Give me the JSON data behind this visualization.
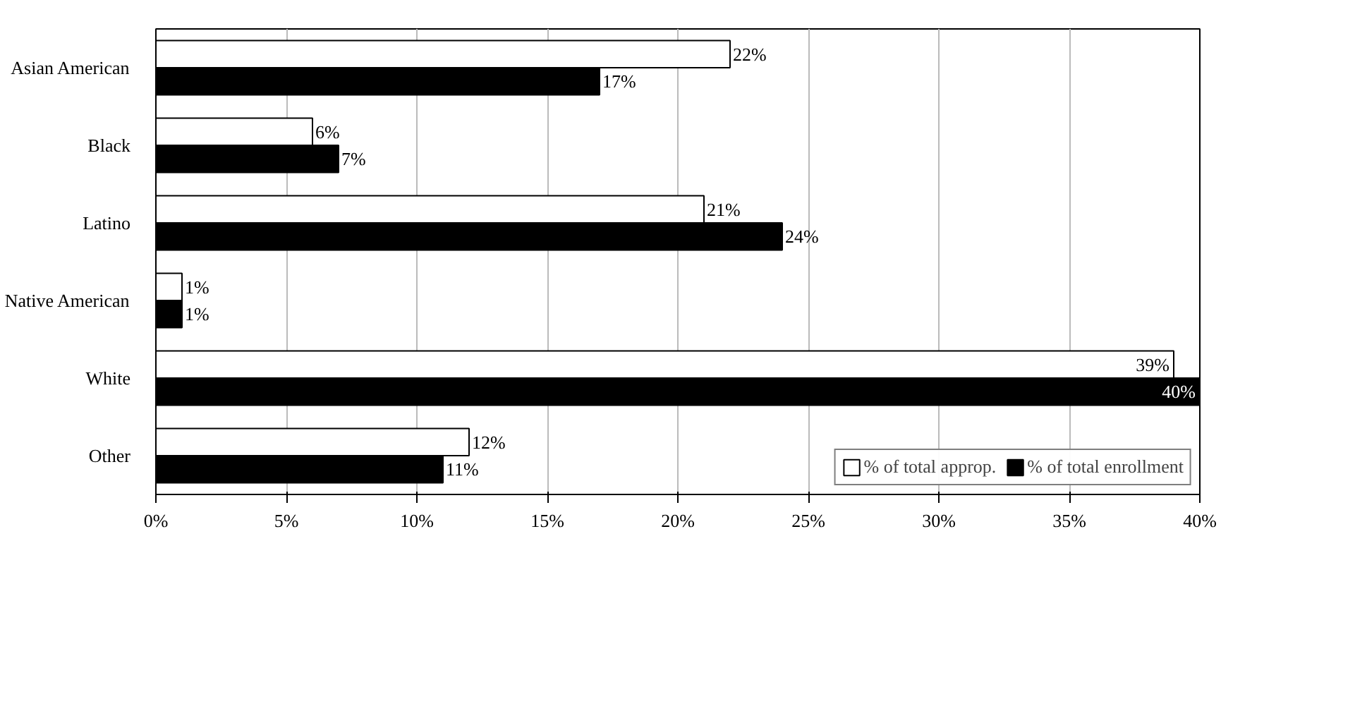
{
  "chart_data": {
    "type": "bar",
    "orientation": "horizontal",
    "categories": [
      "Asian American",
      "Black",
      "Latino",
      "Native American",
      "White",
      "Other"
    ],
    "series": [
      {
        "name": "% of total approp.",
        "color": "#ffffff",
        "values": [
          22,
          6,
          21,
          1,
          39,
          12
        ],
        "value_labels": [
          "22%",
          "6%",
          "21%",
          "1%",
          "39%",
          "12%"
        ]
      },
      {
        "name": "% of total enrollment",
        "color": "#000000",
        "values": [
          17,
          7,
          24,
          1,
          40,
          11
        ],
        "value_labels": [
          "17%",
          "7%",
          "24%",
          "1%",
          "40%",
          "11%"
        ]
      }
    ],
    "xlim": [
      0,
      40
    ],
    "xticks": [
      {
        "value": 0,
        "label": "0%"
      },
      {
        "value": 5,
        "label": "5%"
      },
      {
        "value": 10,
        "label": "10%"
      },
      {
        "value": 15,
        "label": "15%"
      },
      {
        "value": 20,
        "label": "20%"
      },
      {
        "value": 25,
        "label": "25%"
      },
      {
        "value": 30,
        "label": "30%"
      },
      {
        "value": 35,
        "label": "35%"
      },
      {
        "value": 40,
        "label": "40%"
      }
    ],
    "grid": "x",
    "legend": "bottom right"
  }
}
